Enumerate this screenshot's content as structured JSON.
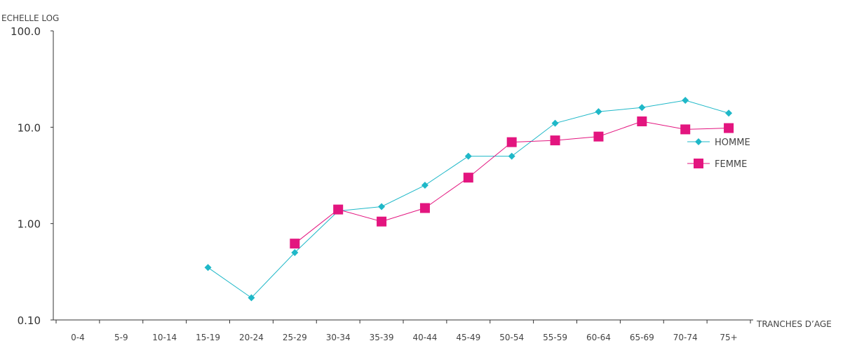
{
  "chart_data": {
    "type": "line",
    "ylabel": "ECHELLE LOG",
    "xlabel": "TRANCHES D’AGE",
    "yscale": "log",
    "ylim": [
      0.1,
      100
    ],
    "yticks": [
      0.1,
      1,
      10,
      100
    ],
    "ytick_labels": [
      "0.10",
      "1.00",
      "10.0",
      "100.0"
    ],
    "categories": [
      "0-4",
      "5-9",
      "10-14",
      "15-19",
      "20-24",
      "25-29",
      "30-34",
      "35-39",
      "40-44",
      "45-49",
      "50-54",
      "55-59",
      "60-64",
      "65-69",
      "70-74",
      "75+"
    ],
    "legend_position": "right",
    "grid": false,
    "series": [
      {
        "name": "HOMME",
        "color": "#1fb8c8",
        "marker": "diamond",
        "values": [
          null,
          null,
          null,
          0.35,
          0.17,
          0.5,
          1.35,
          1.5,
          2.5,
          5.0,
          5.0,
          11.0,
          14.5,
          16.0,
          19.0,
          14.0
        ]
      },
      {
        "name": "FEMME",
        "color": "#e3157f",
        "marker": "square",
        "values": [
          null,
          null,
          null,
          null,
          null,
          0.62,
          1.4,
          1.05,
          1.45,
          3.0,
          7.0,
          7.3,
          8.0,
          11.5,
          9.5,
          9.8
        ]
      }
    ]
  }
}
